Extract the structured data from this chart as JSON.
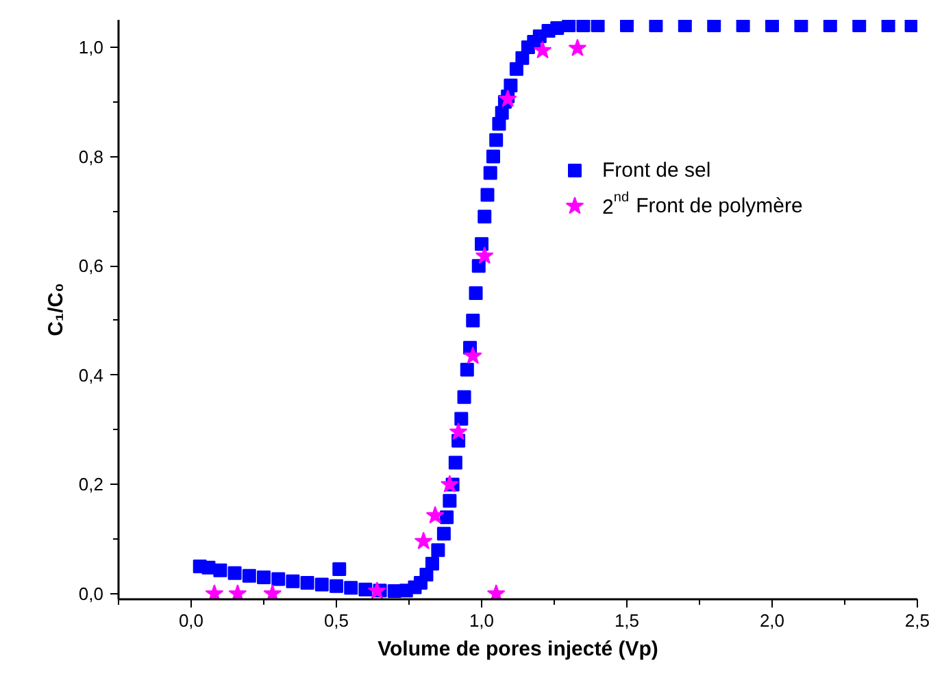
{
  "chart_data": {
    "type": "scatter",
    "xlabel": "Volume de pores injecté (Vp)",
    "ylabel": "C₁/C₀",
    "xlim": [
      -0.25,
      2.5
    ],
    "ylim": [
      -0.01,
      1.05
    ],
    "xticks": [
      {
        "value": -0.25,
        "label": null
      },
      {
        "value": 0,
        "label": "0,0"
      },
      {
        "value": 0.25,
        "label": null
      },
      {
        "value": 0.5,
        "label": "0,5"
      },
      {
        "value": 0.75,
        "label": null
      },
      {
        "value": 1.0,
        "label": "1,0"
      },
      {
        "value": 1.25,
        "label": null
      },
      {
        "value": 1.5,
        "label": "1,5"
      },
      {
        "value": 1.75,
        "label": null
      },
      {
        "value": 2.0,
        "label": "2,0"
      },
      {
        "value": 2.25,
        "label": null
      },
      {
        "value": 2.5,
        "label": "2,5"
      }
    ],
    "yticks": [
      {
        "value": 0,
        "label": "0,0"
      },
      {
        "value": 0.1,
        "label": null
      },
      {
        "value": 0.2,
        "label": "0,2"
      },
      {
        "value": 0.3,
        "label": null
      },
      {
        "value": 0.4,
        "label": "0,4"
      },
      {
        "value": 0.5,
        "label": null
      },
      {
        "value": 0.6,
        "label": "0,6"
      },
      {
        "value": 0.7,
        "label": null
      },
      {
        "value": 0.8,
        "label": "0,8"
      },
      {
        "value": 0.9,
        "label": null
      },
      {
        "value": 1.0,
        "label": "1,0"
      }
    ],
    "grid": false,
    "legend": "top right",
    "series": [
      {
        "name": "Front de sel",
        "color": "#0000ff",
        "marker": "square",
        "x": [
          0.03,
          0.06,
          0.1,
          0.15,
          0.2,
          0.25,
          0.3,
          0.35,
          0.4,
          0.45,
          0.5,
          0.51,
          0.55,
          0.6,
          0.65,
          0.7,
          0.74,
          0.77,
          0.79,
          0.81,
          0.83,
          0.85,
          0.87,
          0.88,
          0.89,
          0.9,
          0.91,
          0.92,
          0.93,
          0.94,
          0.95,
          0.96,
          0.97,
          0.98,
          0.99,
          1.0,
          1.01,
          1.02,
          1.03,
          1.04,
          1.05,
          1.06,
          1.07,
          1.08,
          1.09,
          1.1,
          1.12,
          1.14,
          1.16,
          1.18,
          1.2,
          1.23,
          1.26,
          1.3,
          1.35,
          1.4,
          1.5,
          1.6,
          1.7,
          1.8,
          1.9,
          2.0,
          2.1,
          2.2,
          2.3,
          2.4,
          2.48
        ],
        "values": [
          0.05,
          0.048,
          0.043,
          0.038,
          0.033,
          0.03,
          0.027,
          0.023,
          0.02,
          0.017,
          0.014,
          0.045,
          0.011,
          0.008,
          0.006,
          0.005,
          0.006,
          0.012,
          0.02,
          0.035,
          0.055,
          0.08,
          0.11,
          0.14,
          0.17,
          0.2,
          0.24,
          0.28,
          0.32,
          0.36,
          0.41,
          0.45,
          0.5,
          0.55,
          0.6,
          0.64,
          0.69,
          0.73,
          0.77,
          0.8,
          0.83,
          0.86,
          0.88,
          0.9,
          0.91,
          0.93,
          0.96,
          0.98,
          1.0,
          1.01,
          1.02,
          1.03,
          1.035,
          1.04,
          1.04,
          1.04,
          1.04,
          1.04,
          1.04,
          1.04,
          1.04,
          1.04,
          1.04,
          1.04,
          1.04,
          1.04,
          1.04
        ]
      },
      {
        "name": "2$^{nd}$ Front de polymère",
        "color": "#ff00ff",
        "marker": "star",
        "x": [
          0.08,
          0.16,
          0.28,
          0.64,
          1.05,
          0.8,
          0.84,
          0.89,
          0.92,
          0.97,
          1.01,
          1.09,
          1.21,
          1.33
        ],
        "values": [
          0.0,
          0.0,
          0.0,
          0.005,
          0.0,
          0.096,
          0.143,
          0.2,
          0.296,
          0.435,
          0.618,
          0.905,
          0.994,
          0.998
        ]
      }
    ]
  }
}
